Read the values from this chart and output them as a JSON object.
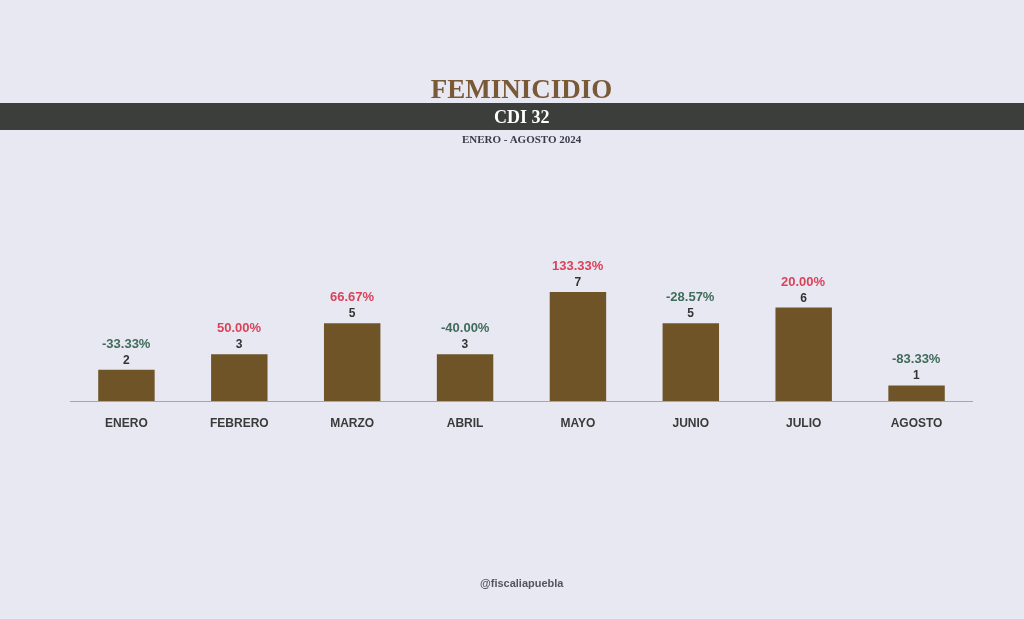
{
  "chart_data": {
    "type": "bar",
    "title": "FEMINICIDIO",
    "subtitle": "CDI 32",
    "categories": [
      "ENERO",
      "FEBRERO",
      "MARZO",
      "ABRIL",
      "MAYO",
      "JUNIO",
      "JULIO",
      "AGOSTO"
    ],
    "values": [
      2,
      3,
      5,
      3,
      7,
      5,
      6,
      1
    ],
    "color": "#6f5428",
    "data_labels": true,
    "annotations": [
      "ENERO - AGOSTO 2024",
      {
        "text": "-33.33%",
        "x": "ENERO",
        "y": 2
      },
      {
        "text": "50.00%",
        "x": "FEBRERO",
        "y": 3
      },
      {
        "text": "66.67%",
        "x": "MARZO",
        "y": 5
      },
      {
        "text": "-40.00%",
        "x": "ABRIL",
        "y": 3
      },
      {
        "text": "133.33%",
        "x": "MAYO",
        "y": 7
      },
      {
        "text": "-28.57%",
        "x": "JUNIO",
        "y": 5
      },
      {
        "text": "20.00%",
        "x": "JULIO",
        "y": 6
      },
      {
        "text": "-83.33%",
        "x": "AGOSTO",
        "y": 1
      },
      "@fiscaliapuebla"
    ]
  }
}
